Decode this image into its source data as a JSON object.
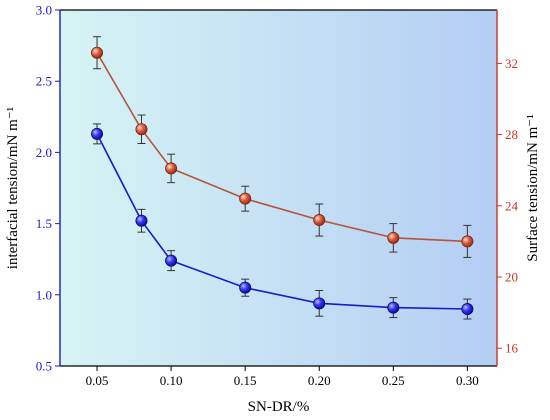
{
  "chart_data": {
    "type": "line",
    "title": "",
    "xlabel": "SN-DR/%",
    "ylabel_left": "interfacial tension/mN m⁻¹",
    "ylabel_right": "Surface tension/mN m⁻¹",
    "x": [
      0.05,
      0.08,
      0.1,
      0.15,
      0.2,
      0.25,
      0.3
    ],
    "x_ticks": [
      "0.05",
      "0.10",
      "0.15",
      "0.20",
      "0.25",
      "0.30"
    ],
    "xlim": [
      0.025,
      0.32
    ],
    "ylim_left": [
      0.5,
      3.0
    ],
    "y_ticks_left": [
      "0.5",
      "1.0",
      "1.5",
      "2.0",
      "2.5",
      "3.0"
    ],
    "ylim_right": [
      15,
      35
    ],
    "y_ticks_right": [
      "16",
      "20",
      "24",
      "28",
      "32"
    ],
    "grid": false,
    "legend": "none",
    "series": [
      {
        "axis": "left",
        "color": "#1a1acc",
        "values": [
          2.13,
          1.52,
          1.24,
          1.05,
          0.94,
          0.91,
          0.9
        ],
        "errors": [
          0.07,
          0.08,
          0.07,
          0.06,
          0.09,
          0.07,
          0.07
        ]
      },
      {
        "axis": "right",
        "color": "#b5543d",
        "values": [
          32.6,
          28.3,
          26.1,
          24.4,
          23.2,
          22.2,
          22.0
        ],
        "errors": [
          0.9,
          0.8,
          0.8,
          0.7,
          0.9,
          0.8,
          0.9
        ]
      }
    ],
    "colors": {
      "left_axis": "#1a1acc",
      "right_axis": "#cc3322",
      "bg_left": "#d6f4f4",
      "bg_right": "#b4cdf4"
    }
  }
}
